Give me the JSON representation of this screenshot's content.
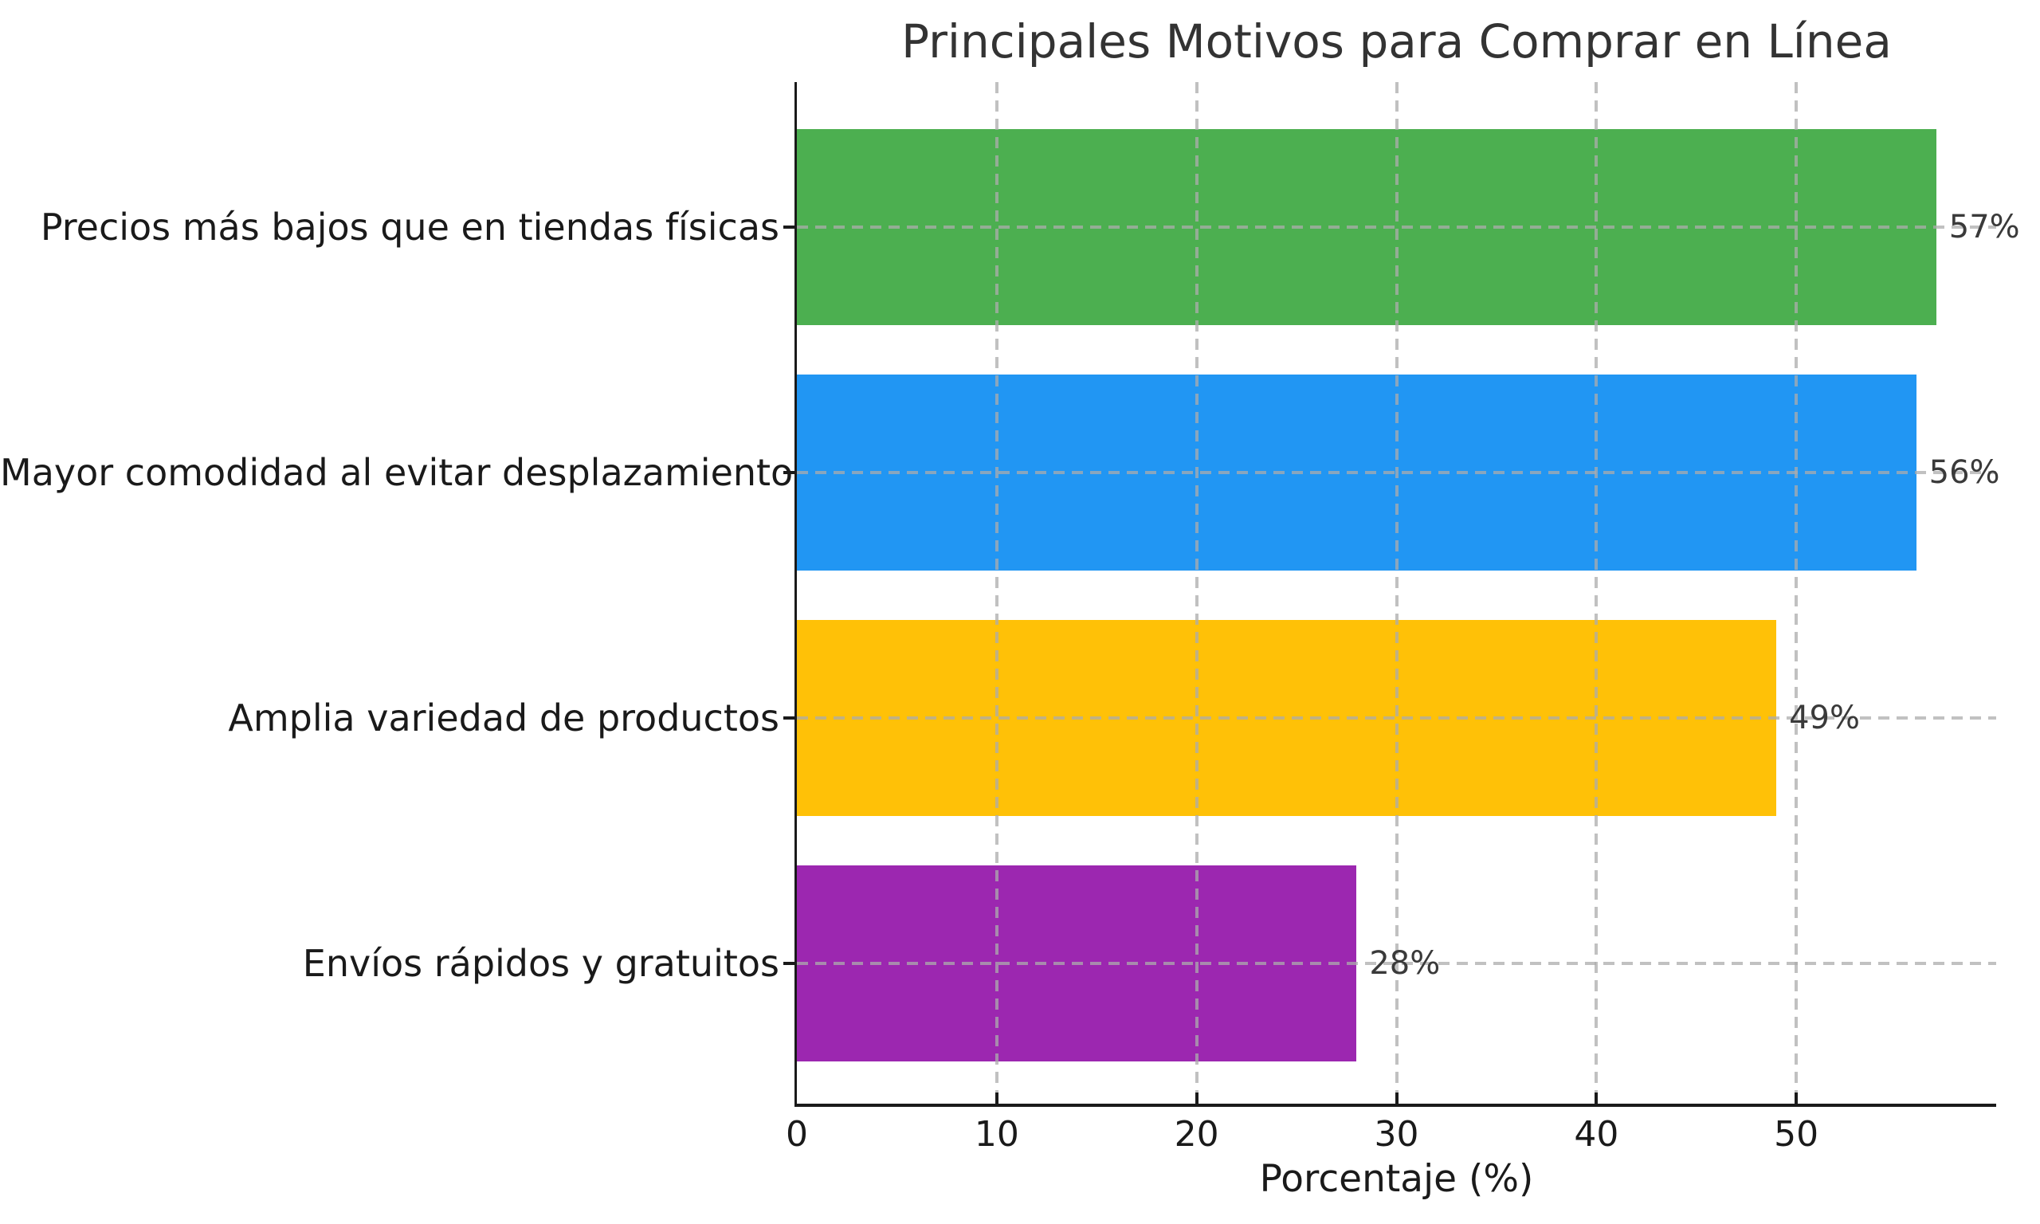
{
  "chart_data": {
    "type": "bar",
    "orientation": "horizontal",
    "title": "Principales Motivos para Comprar en Línea",
    "xlabel": "Porcentaje (%)",
    "ylabel": "",
    "categories": [
      "Precios más bajos que en tiendas físicas",
      "Mayor comodidad al evitar desplazamientos",
      "Amplia variedad de productos",
      "Envíos rápidos y gratuitos"
    ],
    "values": [
      57,
      56,
      49,
      28
    ],
    "value_labels": [
      "57%",
      "56%",
      "49%",
      "28%"
    ],
    "bar_colors": [
      "#4CAF50",
      "#2196F3",
      "#FFC107",
      "#9C27B0"
    ],
    "xlim": [
      0,
      60
    ],
    "xticks": [
      0,
      10,
      20,
      30,
      40,
      50
    ],
    "grid": "dashed gray, both axes, drawn over bars",
    "legend": "none",
    "background_color": "#ffffff",
    "spine_color": "#1a1a1a",
    "grid_color": "#acacac",
    "title_color": "#333333",
    "value_label_color": "#3a3a3a"
  }
}
